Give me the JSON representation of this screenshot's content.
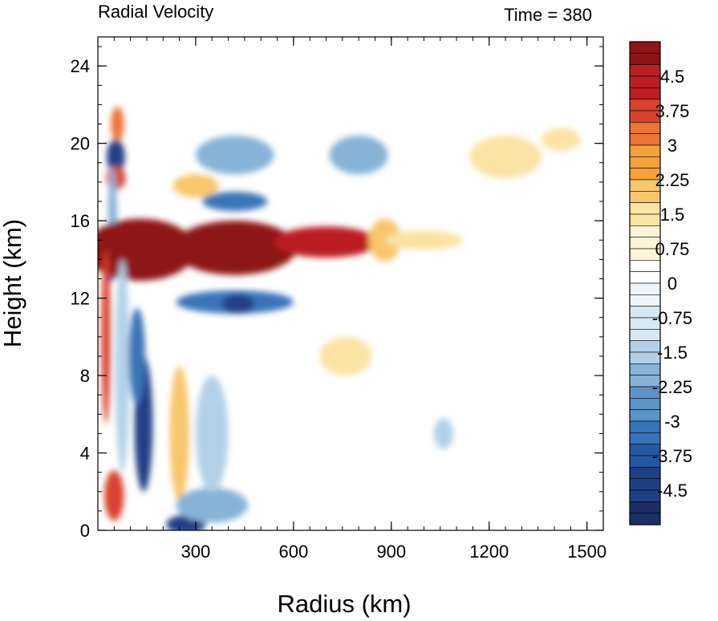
{
  "chart_data": {
    "type": "heatmap",
    "title": "Radial Velocity",
    "subtitle": "Time = 380",
    "xlabel": "Radius (km)",
    "ylabel": "Height (km)",
    "xlim": [
      0,
      1550
    ],
    "ylim": [
      0,
      25.5
    ],
    "x_ticks": [
      300,
      600,
      900,
      1200,
      1500
    ],
    "y_ticks": [
      0,
      4,
      8,
      12,
      16,
      20,
      24
    ],
    "colorbar": {
      "min": -5.25,
      "max": 5.25,
      "step": 0.25,
      "tick_values": [
        4.5,
        3.75,
        3,
        2.25,
        1.5,
        0.75,
        0,
        -0.75,
        -1.5,
        -2.25,
        -3,
        -3.75,
        -4.5
      ],
      "tick_labels": [
        "4.5",
        "3.75",
        "3",
        "2.25",
        "1.5",
        "0.75",
        "0",
        "-0.75",
        "-1.5",
        "-2.25",
        "-3",
        "-3.75",
        "-4.5"
      ],
      "colors": [
        "#1b2f66",
        "#203f84",
        "#2458a2",
        "#3a74b8",
        "#5c93c8",
        "#86b3d8",
        "#b2d1e8",
        "#d6e8f3",
        "#eef6fb",
        "#ffffff",
        "#fdf4d6",
        "#fbe3a4",
        "#f8c66c",
        "#f4a23e",
        "#ec7434",
        "#d9432e",
        "#bb1f24",
        "#8d1417"
      ]
    },
    "features": [
      {
        "x": 60,
        "y": 21.0,
        "rx": 20,
        "ry": 0.9,
        "value": 3.0
      },
      {
        "x": 55,
        "y": 19.3,
        "rx": 28,
        "ry": 0.9,
        "value": -4.5
      },
      {
        "x": 55,
        "y": 18.2,
        "rx": 30,
        "ry": 0.6,
        "value": 3.75
      },
      {
        "x": 45,
        "y": 16.0,
        "rx": 14,
        "ry": 2.8,
        "value": -2.25
      },
      {
        "x": 40,
        "y": 14.0,
        "rx": 12,
        "ry": 1.2,
        "value": -3.75
      },
      {
        "x": 130,
        "y": 14.5,
        "rx": 170,
        "ry": 1.6,
        "value": 5.0
      },
      {
        "x": 420,
        "y": 14.6,
        "rx": 190,
        "ry": 1.4,
        "value": 5.0
      },
      {
        "x": 700,
        "y": 14.9,
        "rx": 160,
        "ry": 0.8,
        "value": 4.5
      },
      {
        "x": 880,
        "y": 15.0,
        "rx": 50,
        "ry": 1.1,
        "value": 2.25
      },
      {
        "x": 1000,
        "y": 15.0,
        "rx": 120,
        "ry": 0.5,
        "value": 1.5
      },
      {
        "x": 420,
        "y": 11.8,
        "rx": 180,
        "ry": 0.6,
        "value": -3.0
      },
      {
        "x": 430,
        "y": 11.7,
        "rx": 50,
        "ry": 0.5,
        "value": -4.5
      },
      {
        "x": 420,
        "y": 19.4,
        "rx": 120,
        "ry": 1.0,
        "value": -2.25
      },
      {
        "x": 800,
        "y": 19.4,
        "rx": 90,
        "ry": 1.0,
        "value": -2.25
      },
      {
        "x": 300,
        "y": 17.8,
        "rx": 70,
        "ry": 0.6,
        "value": 2.25
      },
      {
        "x": 420,
        "y": 17.0,
        "rx": 100,
        "ry": 0.5,
        "value": -3.0
      },
      {
        "x": 1250,
        "y": 19.3,
        "rx": 110,
        "ry": 1.1,
        "value": 1.5
      },
      {
        "x": 1420,
        "y": 20.2,
        "rx": 60,
        "ry": 0.6,
        "value": 1.5
      },
      {
        "x": 25,
        "y": 10.0,
        "rx": 14,
        "ry": 4.5,
        "value": 3.75
      },
      {
        "x": 75,
        "y": 8.5,
        "rx": 22,
        "ry": 5.5,
        "value": -1.5
      },
      {
        "x": 140,
        "y": 5.5,
        "rx": 28,
        "ry": 3.5,
        "value": -4.5
      },
      {
        "x": 120,
        "y": 9.0,
        "rx": 25,
        "ry": 2.5,
        "value": -3.0
      },
      {
        "x": 50,
        "y": 1.8,
        "rx": 30,
        "ry": 1.3,
        "value": 3.75
      },
      {
        "x": 250,
        "y": 5.0,
        "rx": 30,
        "ry": 3.5,
        "value": 2.25
      },
      {
        "x": 270,
        "y": 0.3,
        "rx": 60,
        "ry": 0.5,
        "value": -4.5
      },
      {
        "x": 350,
        "y": 1.3,
        "rx": 110,
        "ry": 0.9,
        "value": -2.25
      },
      {
        "x": 350,
        "y": 5.0,
        "rx": 50,
        "ry": 3.0,
        "value": -1.5
      },
      {
        "x": 760,
        "y": 9.0,
        "rx": 80,
        "ry": 1.0,
        "value": 1.5
      },
      {
        "x": 1060,
        "y": 5.0,
        "rx": 30,
        "ry": 0.8,
        "value": -1.5
      }
    ]
  }
}
